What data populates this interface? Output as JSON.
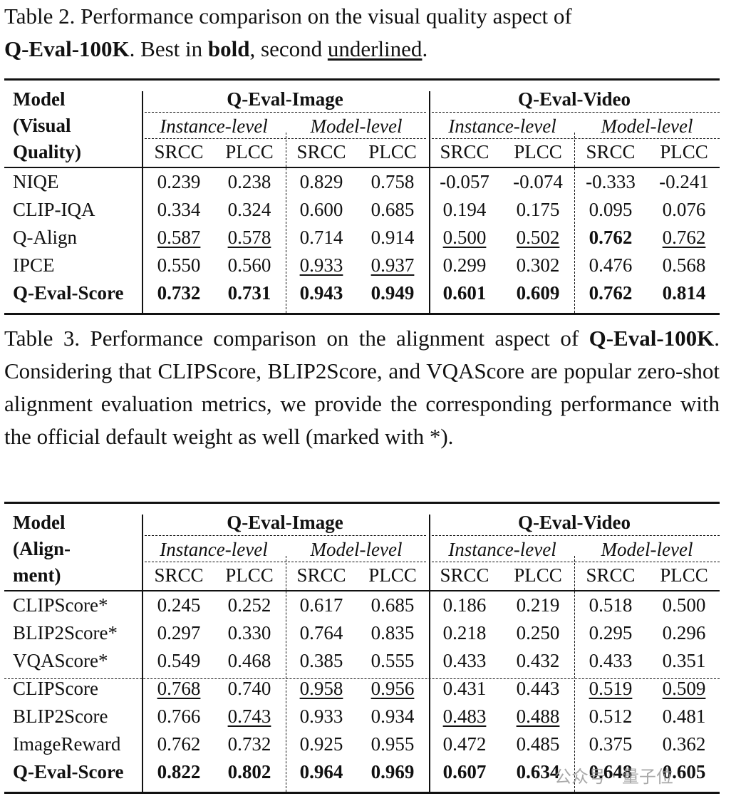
{
  "table2": {
    "caption_prefix": "Table 2.  Performance comparison on the visual quality aspect of",
    "caption_bold": "Q-Eval-100K",
    "caption_mid": ". Best in ",
    "caption_bold2": "bold",
    "caption_mid2": ", second ",
    "caption_ul": "underlined",
    "caption_end": ".",
    "model_header": [
      "Model",
      "(Visual",
      "Quality)"
    ],
    "group_image": "Q-Eval-Image",
    "group_video": "Q-Eval-Video",
    "instance_level": "Instance-level",
    "model_level": "Model-level",
    "metrics": [
      "SRCC",
      "PLCC",
      "SRCC",
      "PLCC",
      "SRCC",
      "PLCC",
      "SRCC",
      "PLCC"
    ],
    "rows": [
      {
        "name": "NIQE",
        "bold_name": false,
        "vals": [
          "0.239",
          "0.238",
          "0.829",
          "0.758",
          "-0.057",
          "-0.074",
          "-0.333",
          "-0.241"
        ],
        "bold": [],
        "ul": []
      },
      {
        "name": "CLIP-IQA",
        "bold_name": false,
        "vals": [
          "0.334",
          "0.324",
          "0.600",
          "0.685",
          "0.194",
          "0.175",
          "0.095",
          "0.076"
        ],
        "bold": [],
        "ul": []
      },
      {
        "name": "Q-Align",
        "bold_name": false,
        "vals": [
          "0.587",
          "0.578",
          "0.714",
          "0.914",
          "0.500",
          "0.502",
          "0.762",
          "0.762"
        ],
        "bold": [
          6
        ],
        "ul": [
          0,
          1,
          4,
          5,
          7
        ]
      },
      {
        "name": "IPCE",
        "bold_name": false,
        "vals": [
          "0.550",
          "0.560",
          "0.933",
          "0.937",
          "0.299",
          "0.302",
          "0.476",
          "0.568"
        ],
        "bold": [],
        "ul": [
          2,
          3
        ]
      },
      {
        "name": "Q-Eval-Score",
        "bold_name": true,
        "vals": [
          "0.732",
          "0.731",
          "0.943",
          "0.949",
          "0.601",
          "0.609",
          "0.762",
          "0.814"
        ],
        "bold": [
          0,
          1,
          2,
          3,
          4,
          5,
          6,
          7
        ],
        "ul": []
      }
    ]
  },
  "table3": {
    "caption_prefix": "Table 3.  Performance comparison on the alignment aspect of",
    "caption_bold": "Q-Eval-100K",
    "caption_rest": ". Considering that CLIPScore, BLIP2Score, and VQAScore are popular zero-shot alignment evaluation metrics, we provide the corresponding performance with the official default weight as well (marked with *).",
    "model_header": [
      "Model",
      "(Align-",
      "ment)"
    ],
    "group_image": "Q-Eval-Image",
    "group_video": "Q-Eval-Video",
    "instance_level": "Instance-level",
    "model_level": "Model-level",
    "metrics": [
      "SRCC",
      "PLCC",
      "SRCC",
      "PLCC",
      "SRCC",
      "PLCC",
      "SRCC",
      "PLCC"
    ],
    "rows": [
      {
        "name": "CLIPScore*",
        "bold_name": false,
        "vals": [
          "0.245",
          "0.252",
          "0.617",
          "0.685",
          "0.186",
          "0.219",
          "0.518",
          "0.500"
        ],
        "bold": [],
        "ul": []
      },
      {
        "name": "BLIP2Score*",
        "bold_name": false,
        "vals": [
          "0.297",
          "0.330",
          "0.764",
          "0.835",
          "0.218",
          "0.250",
          "0.295",
          "0.296"
        ],
        "bold": [],
        "ul": []
      },
      {
        "name": "VQAScore*",
        "bold_name": false,
        "vals": [
          "0.549",
          "0.468",
          "0.385",
          "0.555",
          "0.433",
          "0.432",
          "0.433",
          "0.351"
        ],
        "bold": [],
        "ul": []
      },
      {
        "name": "CLIPScore",
        "bold_name": false,
        "vals": [
          "0.768",
          "0.740",
          "0.958",
          "0.956",
          "0.431",
          "0.443",
          "0.519",
          "0.509"
        ],
        "bold": [],
        "ul": [
          0,
          2,
          3,
          6,
          7
        ]
      },
      {
        "name": "BLIP2Score",
        "bold_name": false,
        "vals": [
          "0.766",
          "0.743",
          "0.933",
          "0.934",
          "0.483",
          "0.488",
          "0.512",
          "0.481"
        ],
        "bold": [],
        "ul": [
          1,
          4,
          5
        ]
      },
      {
        "name": "ImageReward",
        "bold_name": false,
        "vals": [
          "0.762",
          "0.732",
          "0.925",
          "0.955",
          "0.472",
          "0.485",
          "0.375",
          "0.362"
        ],
        "bold": [],
        "ul": []
      },
      {
        "name": "Q-Eval-Score",
        "bold_name": true,
        "vals": [
          "0.822",
          "0.802",
          "0.964",
          "0.969",
          "0.607",
          "0.634",
          "0.648",
          "0.605"
        ],
        "bold": [
          0,
          1,
          2,
          3,
          4,
          5,
          6,
          7
        ],
        "ul": []
      }
    ]
  },
  "watermark": "公众号 · 量子位"
}
